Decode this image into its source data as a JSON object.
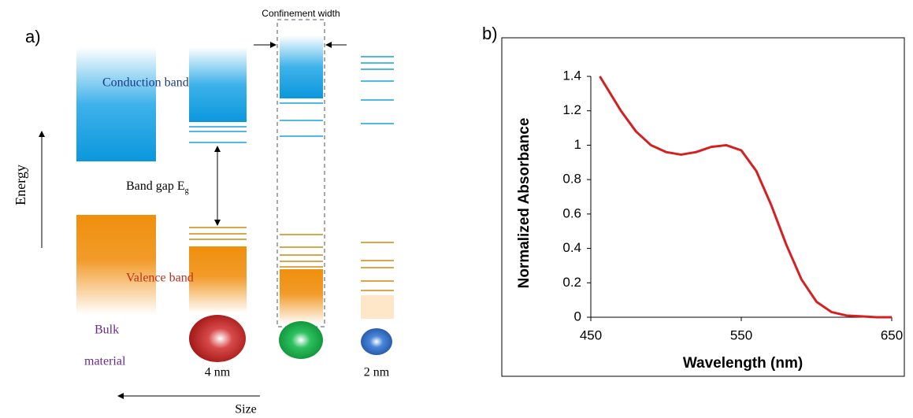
{
  "panel_a": {
    "label": "a)",
    "confinement": "Confinement width",
    "conduction": "Conduction band",
    "band_gap": "Band gap E",
    "band_gap_sub": "g",
    "valence": "Valence band",
    "bulk": "Bulk",
    "material": "material",
    "size_4": "4 nm",
    "size_2": "2 nm",
    "energy": "Energy",
    "size": "Size"
  },
  "panel_b": {
    "label": "b)"
  },
  "chart_data": {
    "type": "line",
    "xlabel": "Wavelength (nm)",
    "ylabel": "Normalized Absorbance",
    "x": [
      456,
      470,
      480,
      490,
      500,
      510,
      520,
      530,
      540,
      550,
      560,
      570,
      580,
      590,
      600,
      610,
      620,
      630,
      640,
      650
    ],
    "values": [
      1.4,
      1.2,
      1.08,
      1.0,
      0.96,
      0.945,
      0.96,
      0.99,
      1.0,
      0.97,
      0.85,
      0.65,
      0.42,
      0.22,
      0.09,
      0.03,
      0.01,
      0.005,
      0,
      0
    ],
    "color": "#d42020",
    "xlim": [
      450,
      650
    ],
    "ylim": [
      0,
      1.4
    ],
    "xticks": [
      450,
      550,
      650
    ],
    "yticks": [
      0,
      0.2,
      0.4,
      0.6,
      0.8,
      1,
      1.2,
      1.4
    ]
  }
}
